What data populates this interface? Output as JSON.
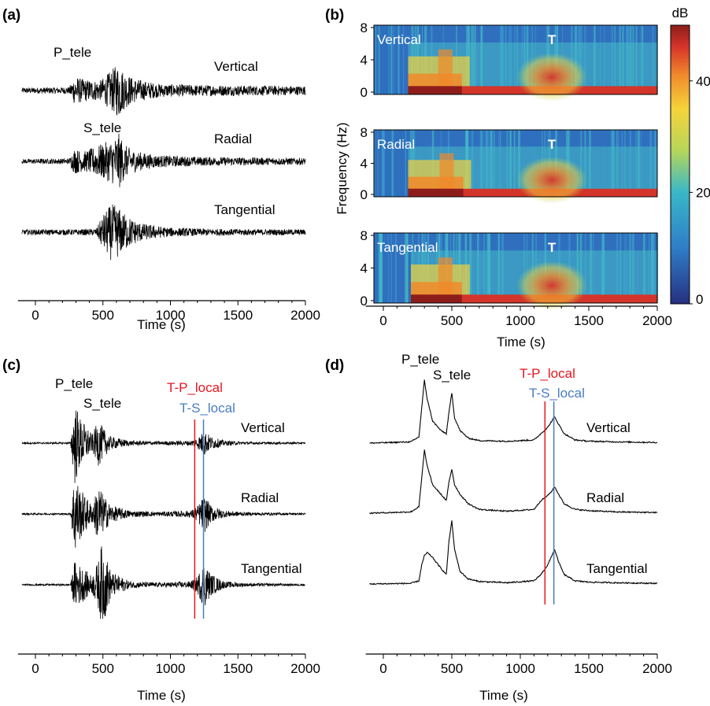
{
  "colors": {
    "axis": "#000000",
    "trace": "#000000",
    "t_p_local": "#e8151f",
    "t_s_local": "#4a7cc4",
    "label_white": "#ffffff"
  },
  "chart_data": [
    {
      "panel": "(a)",
      "type": "line",
      "title": "",
      "xlabel": "Time (s)",
      "xlim": [
        -100,
        2000
      ],
      "xticks": [
        0,
        500,
        1000,
        1500,
        2000
      ],
      "tick_labels": [
        "0",
        "500",
        "1000",
        "1500",
        "2000"
      ],
      "trace_labels": [
        "Vertical",
        "Radial",
        "Tangential"
      ],
      "annotations": [
        "P_tele",
        "S_tele"
      ],
      "series": [
        {
          "name": "Vertical",
          "envelope": {
            "t": [
              -100,
              250,
              290,
              360,
              480,
              560,
              620,
              650,
              720,
              800,
              900,
              1000,
              1200,
              1500,
              2000
            ],
            "amp": [
              0.1,
              0.12,
              0.5,
              0.4,
              0.35,
              0.7,
              1.0,
              0.7,
              0.45,
              0.35,
              0.25,
              0.22,
              0.2,
              0.18,
              0.16
            ]
          }
        },
        {
          "name": "Radial",
          "envelope": {
            "t": [
              -100,
              250,
              290,
              360,
              480,
              560,
              620,
              660,
              720,
              800,
              900,
              1000,
              1200,
              1500,
              2000
            ],
            "amp": [
              0.08,
              0.1,
              0.45,
              0.35,
              0.6,
              0.75,
              1.0,
              0.6,
              0.4,
              0.3,
              0.22,
              0.2,
              0.16,
              0.14,
              0.12
            ]
          }
        },
        {
          "name": "Tangential",
          "envelope": {
            "t": [
              -100,
              300,
              450,
              500,
              560,
              600,
              650,
              720,
              800,
              900,
              1000,
              1200,
              1500,
              2000
            ],
            "amp": [
              0.09,
              0.1,
              0.12,
              0.6,
              1.0,
              0.95,
              0.7,
              0.45,
              0.3,
              0.22,
              0.16,
              0.13,
              0.11,
              0.1
            ]
          }
        }
      ]
    },
    {
      "panel": "(b)",
      "type": "heatmap",
      "xlabel": "Time (s)",
      "ylabel": "Frequency (Hz)",
      "xlim": [
        -100,
        2000
      ],
      "ylim": [
        0,
        8
      ],
      "xticks": [
        0,
        500,
        1000,
        1500,
        2000
      ],
      "tick_labels": [
        "0",
        "500",
        "1000",
        "1500",
        "2000"
      ],
      "yticks": [
        0,
        4,
        8
      ],
      "ytick_labels": [
        "0",
        "4",
        "8"
      ],
      "subplot_labels": [
        "Vertical",
        "Radial",
        "Tangential"
      ],
      "annotation": "T",
      "t_phase_time": 1230,
      "colorbar": {
        "label": "dB",
        "range": [
          0,
          50
        ],
        "ticks": [
          0,
          20,
          40
        ],
        "tick_labels": [
          "0",
          "20",
          "40"
        ]
      },
      "energy_onsets_s": [
        {
          "component": "Vertical",
          "p": 250,
          "s": 470
        },
        {
          "component": "Radial",
          "p": 250,
          "s": 480
        },
        {
          "component": "Tangential",
          "p": 270,
          "s": 470
        }
      ]
    },
    {
      "panel": "(c)",
      "type": "line",
      "xlabel": "Time (s)",
      "xlim": [
        -100,
        2000
      ],
      "xticks": [
        0,
        500,
        1000,
        1500,
        2000
      ],
      "tick_labels": [
        "0",
        "500",
        "1000",
        "1500",
        "2000"
      ],
      "trace_labels": [
        "Vertical",
        "Radial",
        "Tangential"
      ],
      "annotations": [
        "P_tele",
        "S_tele"
      ],
      "markers": [
        {
          "label": "T-P_local",
          "time": 1180
        },
        {
          "label": "T-S_local",
          "time": 1245
        }
      ],
      "series": [
        {
          "name": "Vertical",
          "envelope": {
            "t": [
              -100,
              260,
              290,
              330,
              420,
              470,
              500,
              560,
              700,
              900,
              1150,
              1200,
              1250,
              1300,
              1400,
              1550,
              2000
            ],
            "amp": [
              0.02,
              0.02,
              1.0,
              0.6,
              0.2,
              0.55,
              0.35,
              0.15,
              0.06,
              0.04,
              0.06,
              0.12,
              0.3,
              0.15,
              0.06,
              0.03,
              0.02
            ]
          }
        },
        {
          "name": "Radial",
          "envelope": {
            "t": [
              -100,
              260,
              290,
              330,
              420,
              470,
              500,
              560,
              700,
              900,
              1150,
              1200,
              1250,
              1300,
              1400,
              1550,
              2000
            ],
            "amp": [
              0.02,
              0.02,
              1.0,
              0.6,
              0.2,
              0.7,
              0.45,
              0.2,
              0.08,
              0.05,
              0.08,
              0.18,
              0.45,
              0.2,
              0.08,
              0.04,
              0.02
            ]
          }
        },
        {
          "name": "Tangential",
          "envelope": {
            "t": [
              -100,
              260,
              290,
              330,
              420,
              470,
              495,
              560,
              700,
              900,
              1150,
              1200,
              1250,
              1300,
              1400,
              1550,
              2000
            ],
            "amp": [
              0.02,
              0.02,
              0.55,
              0.45,
              0.2,
              0.6,
              1.0,
              0.3,
              0.08,
              0.05,
              0.08,
              0.2,
              0.55,
              0.25,
              0.08,
              0.04,
              0.02
            ]
          }
        }
      ]
    },
    {
      "panel": "(d)",
      "type": "line",
      "xlabel": "Time (s)",
      "xlim": [
        -100,
        2000
      ],
      "xticks": [
        0,
        500,
        1000,
        1500,
        2000
      ],
      "tick_labels": [
        "0",
        "500",
        "1000",
        "1500",
        "2000"
      ],
      "trace_labels": [
        "Vertical",
        "Radial",
        "Tangential"
      ],
      "annotations": [
        "P_tele",
        "S_tele"
      ],
      "markers": [
        {
          "label": "T-P_local",
          "time": 1180
        },
        {
          "label": "T-S_local",
          "time": 1245
        }
      ],
      "series": [
        {
          "name": "Vertical",
          "x": [
            -100,
            200,
            260,
            280,
            300,
            320,
            360,
            420,
            460,
            480,
            500,
            520,
            560,
            620,
            700,
            900,
            1100,
            1150,
            1200,
            1230,
            1250,
            1280,
            1320,
            1400,
            1500,
            1700,
            2000
          ],
          "y": [
            0,
            0.02,
            0.1,
            0.55,
            1.0,
            0.7,
            0.35,
            0.2,
            0.15,
            0.5,
            0.8,
            0.4,
            0.2,
            0.08,
            0.04,
            0.03,
            0.05,
            0.15,
            0.25,
            0.35,
            0.42,
            0.3,
            0.15,
            0.05,
            0.03,
            0.02,
            0.01
          ]
        },
        {
          "name": "Radial",
          "x": [
            -100,
            200,
            260,
            280,
            300,
            320,
            360,
            420,
            460,
            480,
            500,
            520,
            560,
            620,
            700,
            900,
            1100,
            1150,
            1200,
            1230,
            1250,
            1280,
            1320,
            1400,
            1500,
            1700,
            2000
          ],
          "y": [
            0,
            0.02,
            0.1,
            0.55,
            1.0,
            0.75,
            0.45,
            0.3,
            0.2,
            0.5,
            0.7,
            0.45,
            0.3,
            0.15,
            0.06,
            0.03,
            0.06,
            0.2,
            0.28,
            0.35,
            0.42,
            0.3,
            0.15,
            0.06,
            0.04,
            0.02,
            0.01
          ]
        },
        {
          "name": "Tangential",
          "x": [
            -100,
            200,
            260,
            280,
            300,
            320,
            360,
            420,
            460,
            480,
            500,
            520,
            560,
            620,
            700,
            900,
            1100,
            1150,
            1200,
            1230,
            1250,
            1280,
            1320,
            1400,
            1500,
            1700,
            2000
          ],
          "y": [
            0,
            0.01,
            0.05,
            0.3,
            0.45,
            0.5,
            0.42,
            0.25,
            0.15,
            0.7,
            1.0,
            0.55,
            0.2,
            0.08,
            0.04,
            0.02,
            0.05,
            0.15,
            0.3,
            0.45,
            0.55,
            0.35,
            0.15,
            0.05,
            0.03,
            0.02,
            0.01
          ]
        }
      ]
    }
  ]
}
